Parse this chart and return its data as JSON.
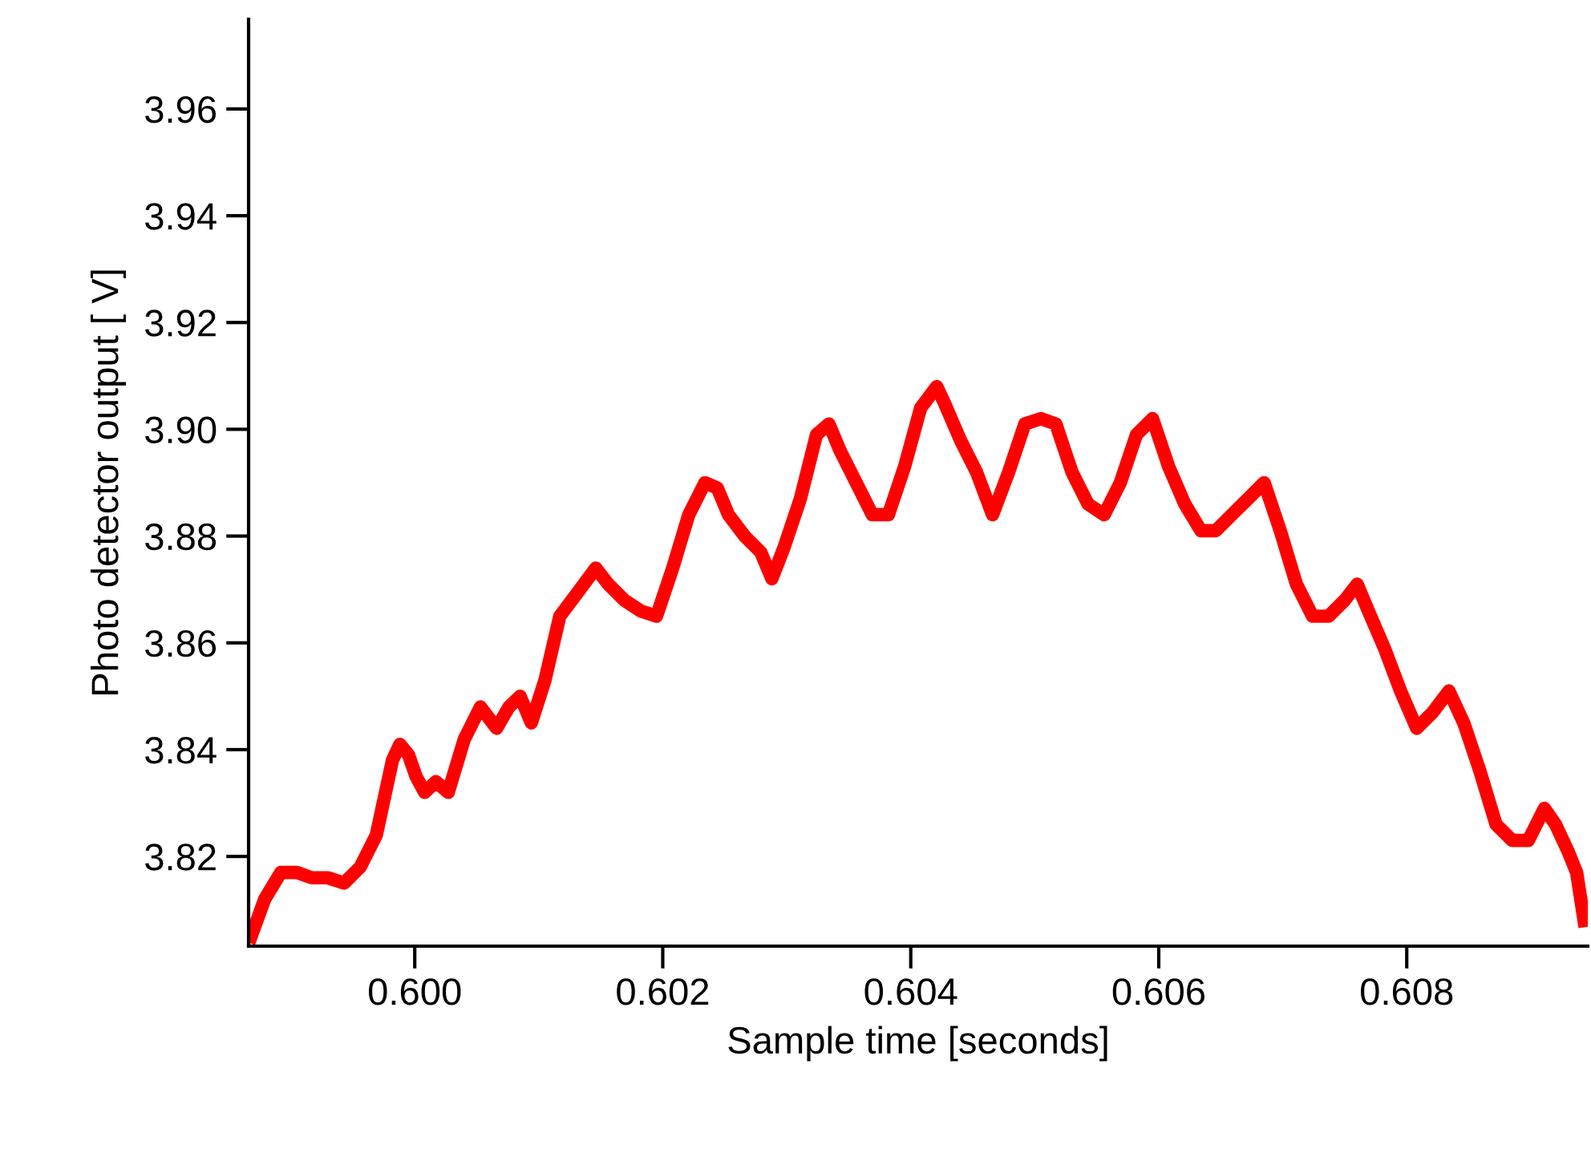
{
  "chart_data": {
    "type": "line",
    "xlabel": "Sample time [seconds]",
    "ylabel": "Photo detector output [ V]",
    "xlim": [
      0.59866,
      0.60946
    ],
    "ylim": [
      3.8032,
      3.9768
    ],
    "xticks": [
      {
        "value": 0.6,
        "label": "0.600"
      },
      {
        "value": 0.602,
        "label": "0.602"
      },
      {
        "value": 0.604,
        "label": "0.604"
      },
      {
        "value": 0.606,
        "label": "0.606"
      },
      {
        "value": 0.608,
        "label": "0.608"
      }
    ],
    "yticks": [
      3.82,
      3.84,
      3.86,
      3.88,
      {
        "value": 3.9,
        "label": "3.90"
      },
      3.92,
      3.94,
      3.96
    ],
    "grid": false,
    "legend": false,
    "marker": "none",
    "line_style": "solid",
    "series": [
      {
        "color": "#ff0000",
        "x": [
          0.59868,
          0.59879,
          0.59892,
          0.59905,
          0.59917,
          0.5993,
          0.59943,
          0.59956,
          0.59969,
          0.59982,
          0.59988,
          0.59995,
          0.60001,
          0.60008,
          0.60017,
          0.60027,
          0.6004,
          0.60053,
          0.60066,
          0.60076,
          0.60085,
          0.60094,
          0.60105,
          0.60117,
          0.6013,
          0.60146,
          0.60156,
          0.60169,
          0.60182,
          0.60195,
          0.60208,
          0.60221,
          0.60234,
          0.60244,
          0.60253,
          0.60266,
          0.60279,
          0.60288,
          0.60298,
          0.60311,
          0.60324,
          0.60334,
          0.60343,
          0.60356,
          0.60369,
          0.60382,
          0.60395,
          0.60408,
          0.60421,
          0.60427,
          0.6044,
          0.60453,
          0.60466,
          0.60479,
          0.60492,
          0.60505,
          0.60517,
          0.6053,
          0.60543,
          0.60556,
          0.60569,
          0.60582,
          0.60595,
          0.60608,
          0.60621,
          0.60634,
          0.60646,
          0.60659,
          0.60672,
          0.60685,
          0.60698,
          0.60711,
          0.60724,
          0.60737,
          0.6075,
          0.6076,
          0.60769,
          0.60782,
          0.60795,
          0.60808,
          0.60821,
          0.60834,
          0.60846,
          0.60859,
          0.60872,
          0.60885,
          0.60898,
          0.60911,
          0.6092,
          0.6093,
          0.60937,
          0.60943
        ],
        "values": [
          3.805,
          3.812,
          3.817,
          3.817,
          3.816,
          3.816,
          3.815,
          3.818,
          3.824,
          3.838,
          3.841,
          3.839,
          3.835,
          3.832,
          3.834,
          3.832,
          3.842,
          3.848,
          3.844,
          3.848,
          3.85,
          3.845,
          3.853,
          3.865,
          3.869,
          3.874,
          3.871,
          3.868,
          3.866,
          3.865,
          3.874,
          3.884,
          3.89,
          3.889,
          3.884,
          3.88,
          3.877,
          3.872,
          3.878,
          3.887,
          3.899,
          3.901,
          3.896,
          3.89,
          3.884,
          3.884,
          3.893,
          3.904,
          3.908,
          3.905,
          3.898,
          3.892,
          3.884,
          3.892,
          3.901,
          3.902,
          3.901,
          3.892,
          3.886,
          3.884,
          3.89,
          3.899,
          3.902,
          3.893,
          3.886,
          3.881,
          3.881,
          3.884,
          3.887,
          3.89,
          3.881,
          3.871,
          3.865,
          3.865,
          3.868,
          3.871,
          3.866,
          3.859,
          3.851,
          3.844,
          3.847,
          3.851,
          3.845,
          3.836,
          3.826,
          3.823,
          3.823,
          3.829,
          3.826,
          3.821,
          3.817,
          3.808
        ]
      }
    ]
  }
}
